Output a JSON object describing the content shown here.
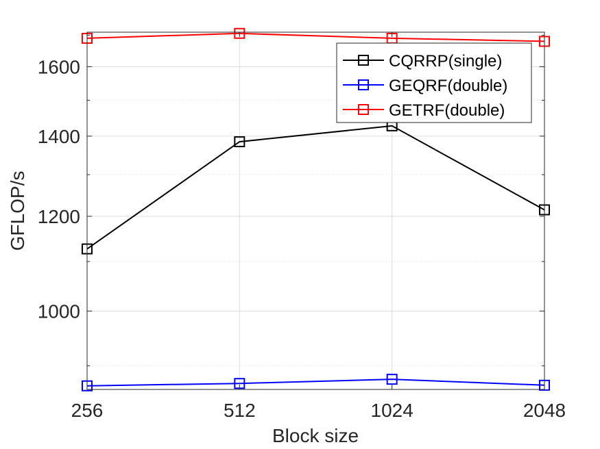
{
  "chart_data": {
    "type": "line",
    "title": "",
    "xlabel": "Block size",
    "ylabel": "GFLOP/s",
    "x": [
      256,
      512,
      1024,
      2048
    ],
    "x_tick_labels": [
      "256",
      "512",
      "1024",
      "2048"
    ],
    "y_scale": "log",
    "xlim": [
      256,
      2048
    ],
    "ylim": [
      860,
      1710
    ],
    "y_ticks": [
      1000,
      1200,
      1400,
      1600
    ],
    "y_tick_labels": [
      "1000",
      "1200",
      "1400",
      "1600"
    ],
    "grid": true,
    "legend_position": "top-right",
    "series": [
      {
        "name": "CQRRP(single)",
        "color": "#000000",
        "values": [
          1127,
          1385,
          1428,
          1215
        ]
      },
      {
        "name": "GEQRF(double)",
        "color": "#0000ff",
        "values": [
          866,
          870,
          877,
          867
        ]
      },
      {
        "name": "GETRF(double)",
        "color": "#ff0000",
        "values": [
          1690,
          1706,
          1690,
          1680
        ]
      }
    ]
  }
}
